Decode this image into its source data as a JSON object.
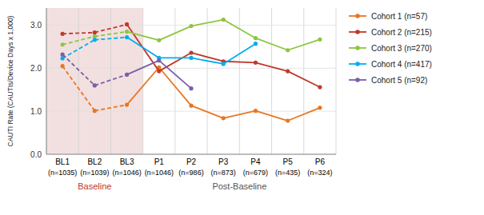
{
  "chart_data": {
    "type": "line",
    "ylabel": "CAUTI Rate (CAUTIs/Device Days x 1,000)",
    "categories": [
      "BL1",
      "BL2",
      "BL3",
      "P1",
      "P2",
      "P3",
      "P4",
      "P5",
      "P6"
    ],
    "annotations": [
      {
        "text": "(n=1035)",
        "at": "BL1"
      },
      {
        "text": "(n=1039)",
        "at": "BL2"
      },
      {
        "text": "(n=1046)",
        "at": "BL3"
      },
      {
        "text": "(n=1046)",
        "at": "P1"
      },
      {
        "text": "(n=986)",
        "at": "P2"
      },
      {
        "text": "(n=873)",
        "at": "P3"
      },
      {
        "text": "(n=679)",
        "at": "P4"
      },
      {
        "text": "(n=435)",
        "at": "P5"
      },
      {
        "text": "(n=324)",
        "at": "P6"
      }
    ],
    "groups": [
      {
        "label": "Baseline",
        "categories": [
          "BL1",
          "BL2",
          "BL3"
        ],
        "color": "#C0392B",
        "background": "#F2E0E0",
        "line_style": "dashed"
      },
      {
        "label": "Post-Baseline",
        "categories": [
          "P1",
          "P2",
          "P3",
          "P4",
          "P5",
          "P6"
        ],
        "color": "#555555",
        "line_style": "solid"
      }
    ],
    "series": [
      {
        "name": "Cohort 1 (n=57)",
        "color": "#E87722",
        "values": [
          2.05,
          1.01,
          1.15,
          2.02,
          1.13,
          0.84,
          1.01,
          0.78,
          1.08
        ]
      },
      {
        "name": "Cohort 2 (n=215)",
        "color": "#C0392B",
        "values": [
          2.8,
          2.83,
          3.02,
          1.93,
          2.36,
          2.16,
          2.13,
          1.93,
          1.56
        ]
      },
      {
        "name": "Cohort 3 (n=270)",
        "color": "#8DC63F",
        "values": [
          2.55,
          2.74,
          2.85,
          2.65,
          2.98,
          3.13,
          2.7,
          2.42,
          2.67
        ]
      },
      {
        "name": "Cohort 4 (n=417)",
        "color": "#00AEEF",
        "values": [
          2.23,
          2.66,
          2.72,
          2.24,
          2.24,
          2.1,
          2.57,
          null,
          null
        ]
      },
      {
        "name": "Cohort 5 (n=92)",
        "color": "#7B5EA7",
        "values": [
          2.32,
          1.6,
          1.85,
          2.18,
          1.53,
          null,
          null,
          null,
          null
        ]
      }
    ],
    "ylim": [
      0.0,
      3.4
    ],
    "yticks": [
      {
        "value": 0.0,
        "label": "0.0"
      },
      {
        "value": 1.0,
        "label": "1.0"
      },
      {
        "value": 2.0,
        "label": "2.0"
      },
      {
        "value": 3.0,
        "label": "3.0"
      }
    ],
    "grid": true,
    "marker": "circle",
    "legend": "right"
  }
}
